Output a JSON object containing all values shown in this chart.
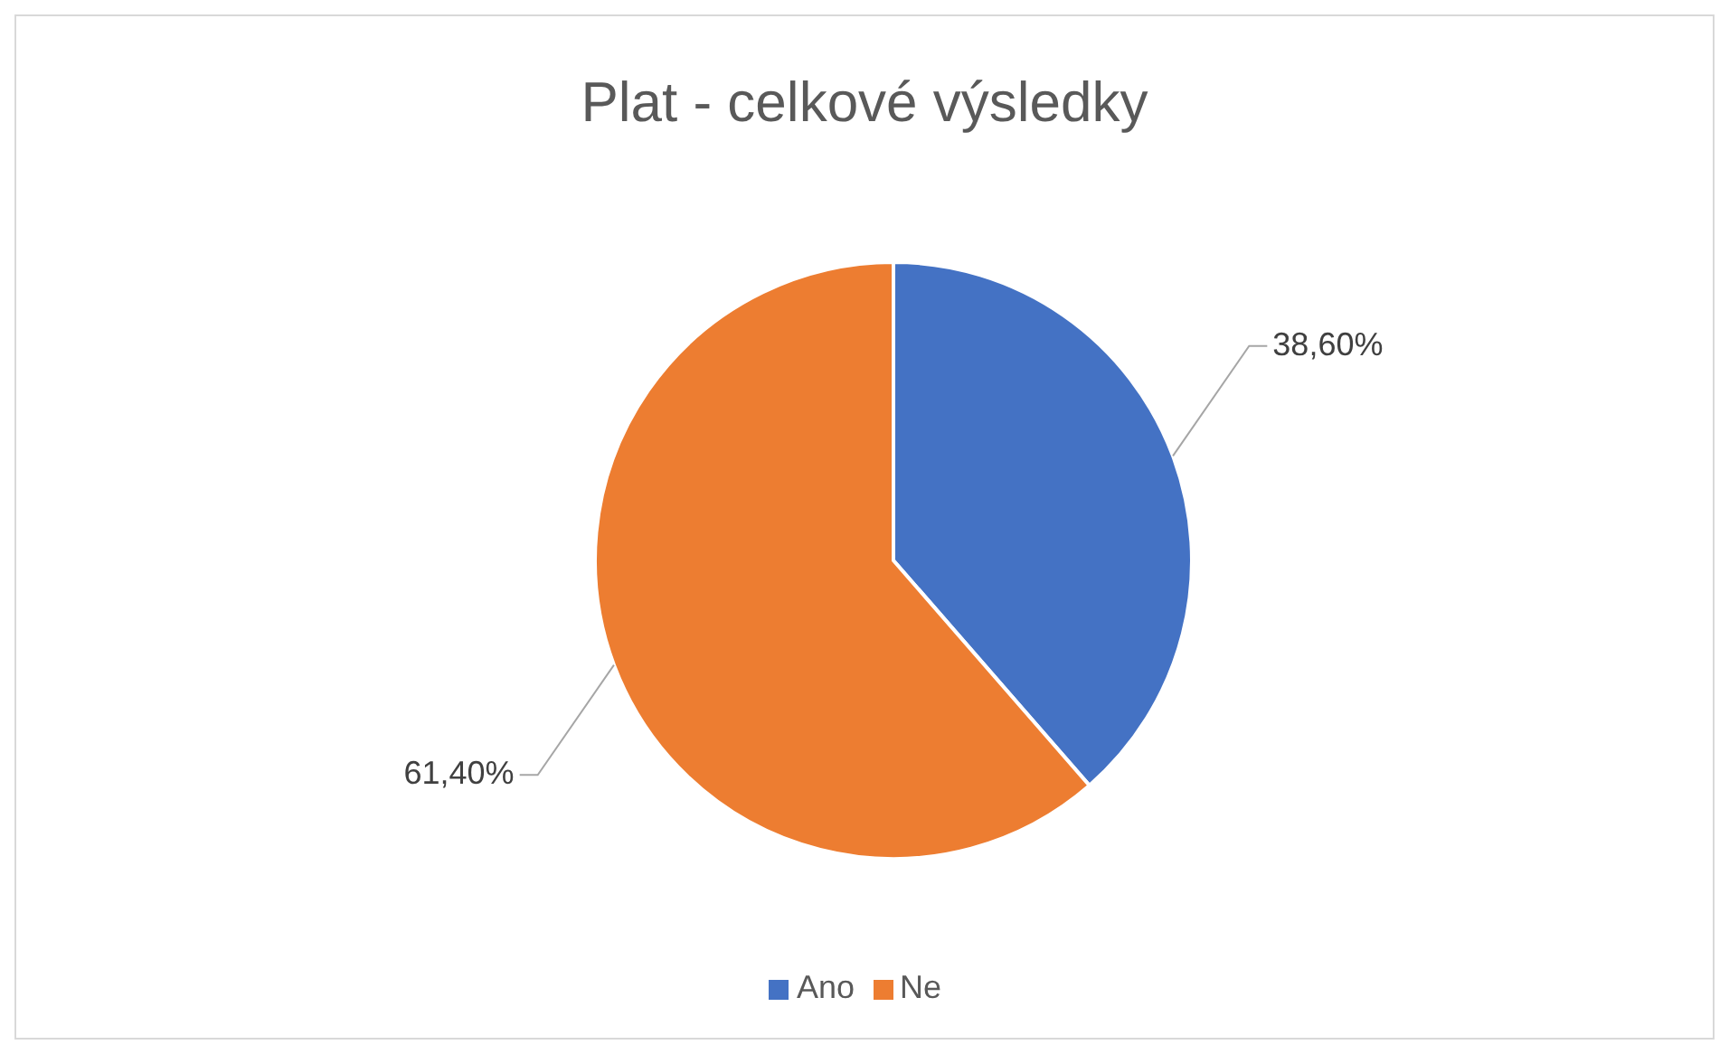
{
  "chart_data": {
    "type": "pie",
    "title": "Plat - celkové výsledky",
    "categories": [
      "Ano",
      "Ne"
    ],
    "values": [
      38.6,
      61.4
    ],
    "colors": [
      "#4472c4",
      "#ed7d31"
    ],
    "value_labels": [
      "38,60%",
      "61,40%"
    ],
    "legend": "bottom"
  }
}
